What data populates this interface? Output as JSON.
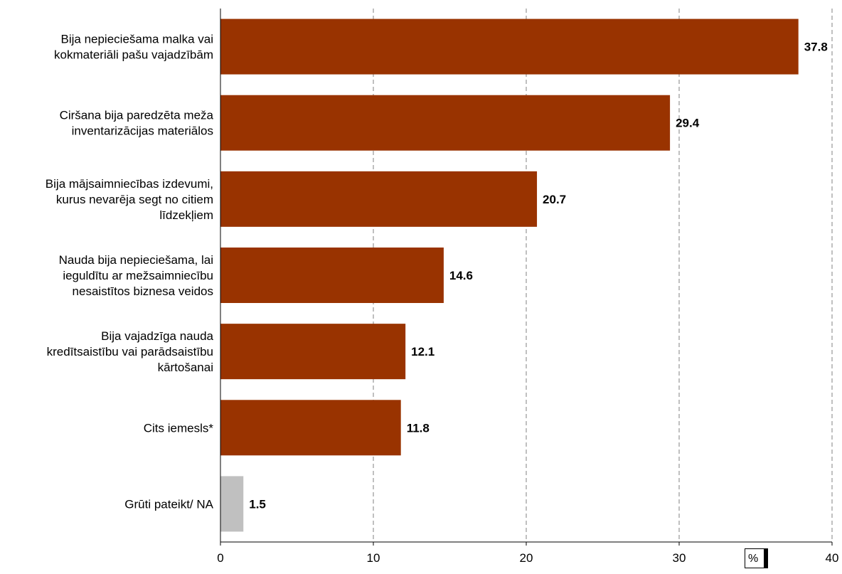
{
  "chart_data": {
    "type": "bar",
    "orientation": "horizontal",
    "categories": [
      [
        "Bija nepieciešama malka vai",
        "kokmateriāli pašu vajadzībām"
      ],
      [
        "Ciršana bija paredzēta meža",
        "inventarizācijas materiālos"
      ],
      [
        "Bija mājsaimniecības izdevumi,",
        "kurus nevarēja segt no citiem",
        "līdzekļiem"
      ],
      [
        "Nauda bija nepieciešama, lai",
        "ieguldītu ar mežsaimniecību",
        "nesaistītos biznesa veidos"
      ],
      [
        "Bija vajadzīga nauda",
        "kredītsaistību vai parādsaistību",
        "kārtošanai"
      ],
      [
        "Cits iemesls*"
      ],
      [
        "Grūti pateikt/ NA"
      ]
    ],
    "values": [
      37.8,
      29.4,
      20.7,
      14.6,
      12.1,
      11.8,
      1.5
    ],
    "value_labels": [
      "37.8",
      "29.4",
      "20.7",
      "14.6",
      "12.1",
      "11.8",
      "1.5"
    ],
    "bar_colors": [
      "#993300",
      "#993300",
      "#993300",
      "#993300",
      "#993300",
      "#993300",
      "#c0c0c0"
    ],
    "xlim": [
      0,
      40
    ],
    "xticks": [
      0,
      10,
      20,
      30,
      40
    ],
    "grid": "vertical dashed",
    "unit_label": "%"
  }
}
